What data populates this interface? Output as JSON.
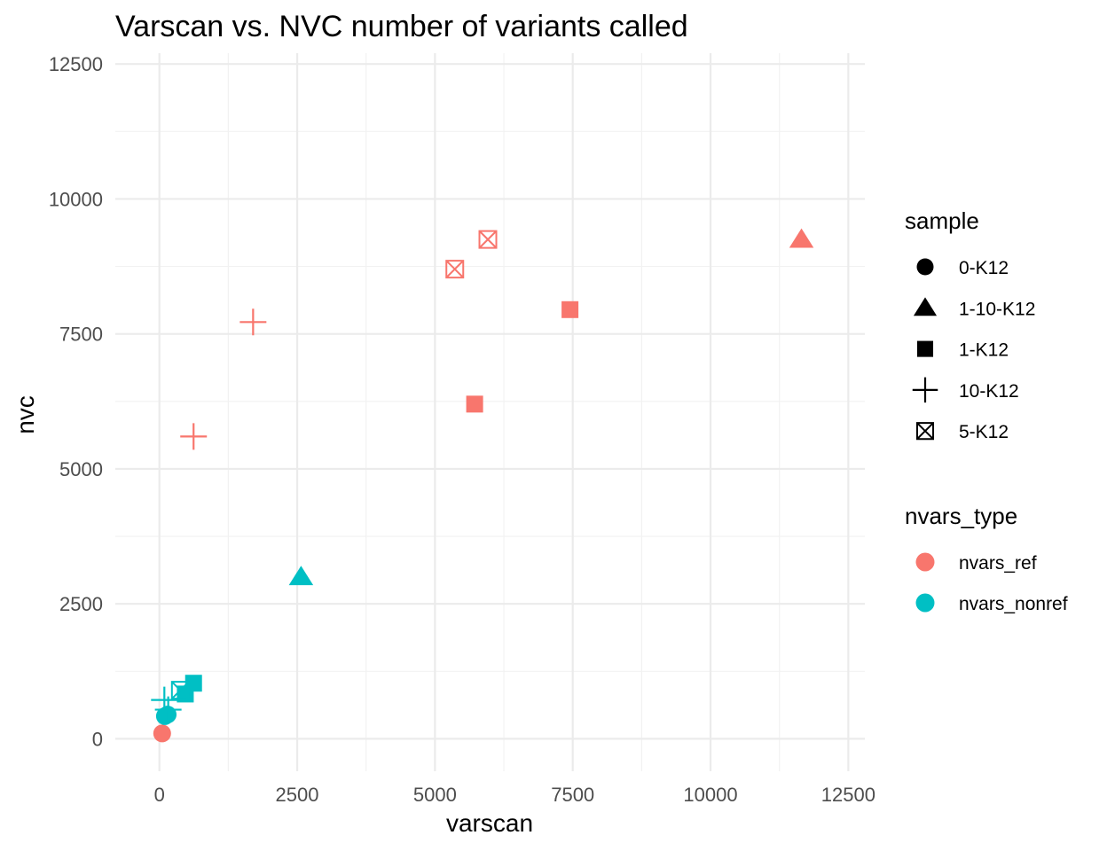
{
  "chart_data": {
    "type": "scatter",
    "title": "Varscan vs. NVC number of variants called",
    "xlabel": "varscan",
    "ylabel": "nvc",
    "xlim": [
      -800,
      12800
    ],
    "ylim": [
      -600,
      12700
    ],
    "x_ticks": [
      0,
      2500,
      5000,
      7500,
      10000,
      12500
    ],
    "y_ticks": [
      0,
      2500,
      5000,
      7500,
      10000,
      12500
    ],
    "x_tick_labels": [
      "0",
      "2500",
      "5000",
      "7500",
      "10000",
      "12500"
    ],
    "y_tick_labels": [
      "0",
      "2500",
      "5000",
      "7500",
      "10000",
      "12500"
    ],
    "grid": true,
    "theme": "minimal",
    "legends": {
      "sample": {
        "title": "sample",
        "items": [
          {
            "label": "0-K12",
            "shape": "circle"
          },
          {
            "label": "1-10-K12",
            "shape": "triangle"
          },
          {
            "label": "1-K12",
            "shape": "square"
          },
          {
            "label": "10-K12",
            "shape": "plus"
          },
          {
            "label": "5-K12",
            "shape": "boxcross"
          }
        ]
      },
      "nvars_type": {
        "title": "nvars_type",
        "items": [
          {
            "label": "nvars_ref",
            "color": "#F8766D"
          },
          {
            "label": "nvars_nonref",
            "color": "#00BFC4"
          }
        ]
      }
    },
    "legend_position": "right",
    "points": [
      {
        "x": 50,
        "y": 100,
        "sample": "0-K12",
        "type": "nvars_ref"
      },
      {
        "x": 11650,
        "y": 9250,
        "sample": "1-10-K12",
        "type": "nvars_ref"
      },
      {
        "x": 7450,
        "y": 7950,
        "sample": "1-K12",
        "type": "nvars_ref"
      },
      {
        "x": 5720,
        "y": 6200,
        "sample": "1-K12",
        "type": "nvars_ref"
      },
      {
        "x": 1700,
        "y": 7720,
        "sample": "10-K12",
        "type": "nvars_ref"
      },
      {
        "x": 620,
        "y": 5600,
        "sample": "10-K12",
        "type": "nvars_ref"
      },
      {
        "x": 5360,
        "y": 8700,
        "sample": "5-K12",
        "type": "nvars_ref"
      },
      {
        "x": 5960,
        "y": 9250,
        "sample": "5-K12",
        "type": "nvars_ref"
      },
      {
        "x": 100,
        "y": 420,
        "sample": "0-K12",
        "type": "nvars_nonref"
      },
      {
        "x": 150,
        "y": 450,
        "sample": "0-K12",
        "type": "nvars_nonref"
      },
      {
        "x": 2570,
        "y": 3000,
        "sample": "1-10-K12",
        "type": "nvars_nonref"
      },
      {
        "x": 620,
        "y": 1030,
        "sample": "1-K12",
        "type": "nvars_nonref"
      },
      {
        "x": 470,
        "y": 830,
        "sample": "1-K12",
        "type": "nvars_nonref"
      },
      {
        "x": 90,
        "y": 720,
        "sample": "10-K12",
        "type": "nvars_nonref"
      },
      {
        "x": 160,
        "y": 540,
        "sample": "10-K12",
        "type": "nvars_nonref"
      },
      {
        "x": 380,
        "y": 900,
        "sample": "5-K12",
        "type": "nvars_nonref"
      }
    ]
  }
}
